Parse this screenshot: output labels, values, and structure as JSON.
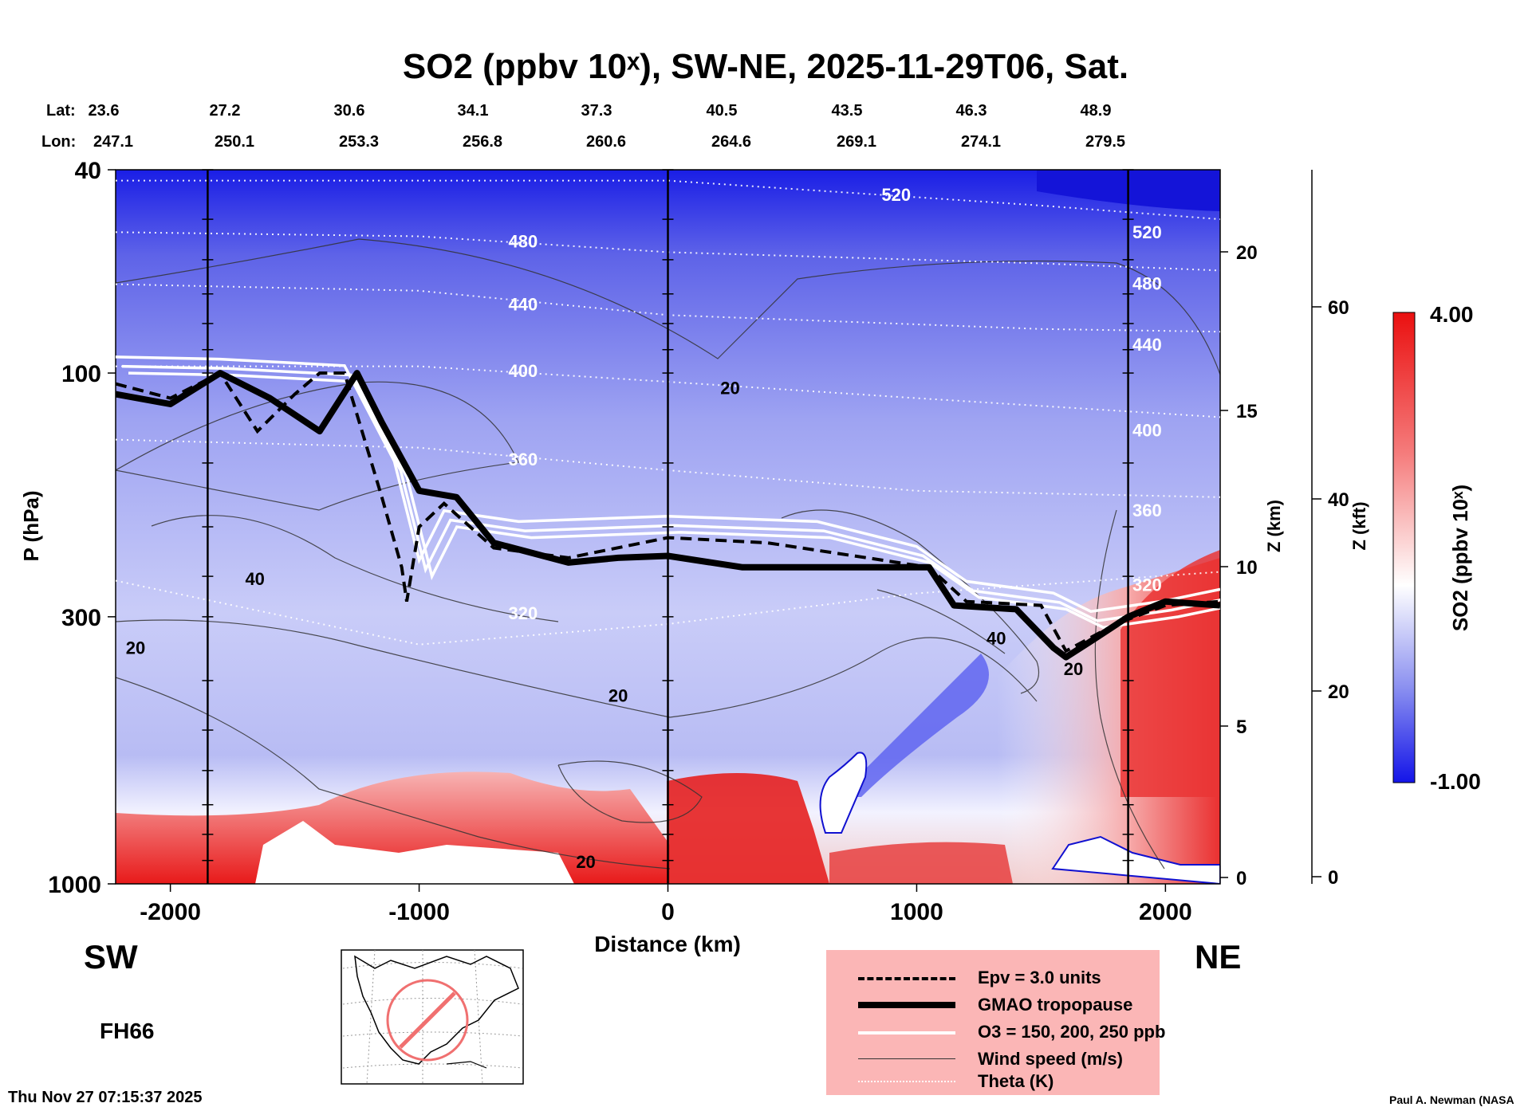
{
  "title": "SO2 (ppbv 10ˣ), SW-NE, 2025-11-29T06, Sat.",
  "direction": {
    "left": "SW",
    "right": "NE"
  },
  "forecast_hour": "FH66",
  "timestamp": "Thu Nov 27 07:15:37 2025",
  "credit": "Paul A. Newman (NASA",
  "latlon": {
    "lat_label": "Lat:",
    "lon_label": "Lon:",
    "lats": [
      "23.6",
      "27.2",
      "30.6",
      "34.1",
      "37.3",
      "40.5",
      "43.5",
      "46.3",
      "48.9"
    ],
    "lons": [
      "247.1",
      "250.1",
      "253.3",
      "256.8",
      "260.6",
      "264.6",
      "269.1",
      "274.1",
      "279.5"
    ]
  },
  "legend": [
    {
      "label": "Epv = 3.0 units",
      "style": "dashed"
    },
    {
      "label": "GMAO tropopause",
      "style": "thick"
    },
    {
      "label": "O3 = 150, 200, 250 ppb",
      "style": "white"
    },
    {
      "label": "Wind speed (m/s)",
      "style": "thin"
    },
    {
      "label": "Theta (K)",
      "style": "dotted"
    }
  ],
  "colors": {
    "high": "#e8101a",
    "mid": "#ffffff",
    "low": "#1c1cf0",
    "legend_bg": "#fbb6b6"
  },
  "chart_data": {
    "type": "heatmap",
    "title": "SO2 (ppbv 10ˣ), SW-NE, 2025-11-29T06, Sat.",
    "xlabel": "Distance (km)",
    "ylabel": "P (hPa)",
    "xlim": [
      -2220,
      2220
    ],
    "ylim": [
      1000,
      40
    ],
    "x_ticks": [
      -2000,
      -1000,
      0,
      1000,
      2000
    ],
    "y_ticks": [
      40,
      100,
      300,
      1000
    ],
    "z_km": {
      "label": "Z (km)",
      "ticks": [
        0,
        5,
        10,
        15,
        20
      ]
    },
    "z_kft": {
      "label": "Z (kft)",
      "ticks": [
        0,
        20,
        40,
        60
      ]
    },
    "colorbar": {
      "label": "SO2 (ppbv 10ˣ)",
      "min": -1.0,
      "max": 4.0,
      "min_label": "-1.00",
      "max_label": "4.00"
    },
    "vertical_markers_km": [
      -1850,
      0,
      1850
    ],
    "theta_contours": [
      {
        "label": "520",
        "values": [
          [
            -2220,
            42
          ],
          [
            0,
            42
          ],
          [
            1500,
            47
          ],
          [
            2220,
            50
          ]
        ]
      },
      {
        "label": "480",
        "values": [
          [
            -2220,
            53
          ],
          [
            -1000,
            54
          ],
          [
            0,
            58
          ],
          [
            1500,
            61
          ],
          [
            2220,
            63
          ]
        ]
      },
      {
        "label": "440",
        "values": [
          [
            -2220,
            67
          ],
          [
            -1000,
            69
          ],
          [
            0,
            77
          ],
          [
            1500,
            82
          ],
          [
            2220,
            83
          ]
        ]
      },
      {
        "label": "400",
        "values": [
          [
            -2220,
            97
          ],
          [
            -1000,
            97
          ],
          [
            0,
            104
          ],
          [
            1000,
            112
          ],
          [
            2220,
            122
          ]
        ]
      },
      {
        "label": "360",
        "values": [
          [
            -2220,
            135
          ],
          [
            -1000,
            140
          ],
          [
            0,
            155
          ],
          [
            1000,
            170
          ],
          [
            2220,
            175
          ]
        ]
      },
      {
        "label": "320",
        "values": [
          [
            -2220,
            255
          ],
          [
            -1000,
            340
          ],
          [
            0,
            310
          ],
          [
            1000,
            270
          ],
          [
            2220,
            245
          ]
        ]
      }
    ],
    "wind_labels": [
      {
        "text": "20",
        "x": 250,
        "p": 110
      },
      {
        "text": "20",
        "x": -2140,
        "p": 355
      },
      {
        "text": "40",
        "x": -1660,
        "p": 260
      },
      {
        "text": "20",
        "x": -200,
        "p": 440
      },
      {
        "text": "40",
        "x": 1320,
        "p": 340
      },
      {
        "text": "20",
        "x": 1630,
        "p": 390
      },
      {
        "text": "20",
        "x": -330,
        "p": 930
      }
    ],
    "tropopause_hpa": {
      "x": [
        -2220,
        -2000,
        -1800,
        -1600,
        -1400,
        -1250,
        -1150,
        -1000,
        -850,
        -700,
        -400,
        -200,
        0,
        300,
        700,
        1050,
        1150,
        1400,
        1550,
        1600,
        1700,
        1850,
        2000,
        2220
      ],
      "values": [
        110,
        115,
        100,
        112,
        130,
        100,
        125,
        170,
        175,
        215,
        235,
        230,
        228,
        240,
        240,
        240,
        285,
        290,
        345,
        360,
        335,
        300,
        280,
        285
      ]
    },
    "epv_3_hpa": {
      "x": [
        -2220,
        -2000,
        -1800,
        -1650,
        -1500,
        -1400,
        -1300,
        -1150,
        -1070,
        -1050,
        -1000,
        -900,
        -700,
        -400,
        0,
        400,
        800,
        1050,
        1200,
        1500,
        1600,
        1800,
        2000,
        2220
      ],
      "values": [
        105,
        112,
        100,
        130,
        110,
        100,
        100,
        175,
        240,
        280,
        200,
        180,
        220,
        230,
        210,
        215,
        230,
        240,
        280,
        285,
        350,
        310,
        285,
        280
      ]
    },
    "ozone_hpa": {
      "x": [
        -2220,
        -1800,
        -1300,
        -1100,
        -1000,
        -900,
        -600,
        0,
        600,
        1000,
        1200,
        1550,
        1700,
        2000,
        2220
      ],
      "values": [
        100,
        101,
        104,
        160,
        250,
        200,
        210,
        205,
        210,
        235,
        275,
        290,
        315,
        300,
        285
      ]
    }
  }
}
